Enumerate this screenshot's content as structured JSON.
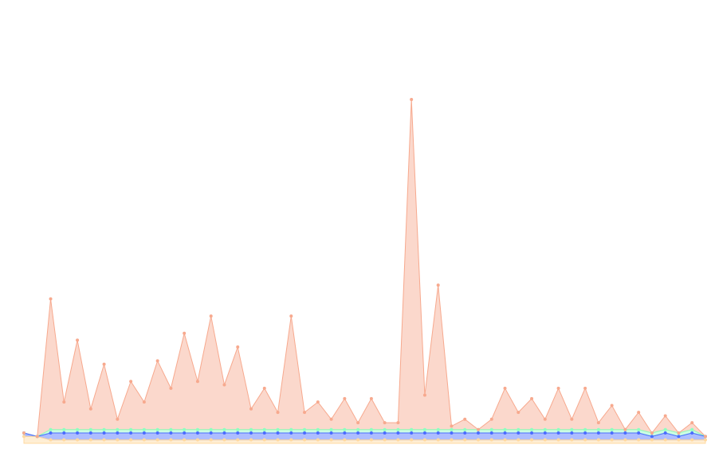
{
  "chart_data": {
    "type": "stacked-area",
    "categories": [
      null,
      null,
      null,
      null,
      null,
      null,
      null,
      null,
      null,
      null,
      null,
      null,
      null,
      null,
      null,
      null,
      null,
      null,
      null,
      null,
      null,
      null,
      null,
      null,
      null,
      null,
      null,
      null,
      null,
      null,
      null,
      null,
      null,
      null,
      null,
      null,
      null,
      null,
      null,
      null,
      null,
      null,
      null,
      null,
      null,
      null,
      null,
      null,
      null,
      null,
      null,
      null
    ],
    "ylim": [
      0,
      100
    ],
    "series": [
      {
        "color": "#ffd9a0",
        "values": [
          2,
          2,
          1,
          1,
          1,
          1,
          1,
          1,
          1,
          1,
          1,
          1,
          1,
          1,
          1,
          1,
          1,
          1,
          1,
          1,
          1,
          1,
          1,
          1,
          1,
          1,
          1,
          1,
          1,
          1,
          1,
          1,
          1,
          1,
          1,
          1,
          1,
          1,
          1,
          1,
          1,
          1,
          1,
          1,
          1,
          1,
          1,
          1,
          1,
          1,
          1,
          1
        ]
      },
      {
        "color": "#4a6cff",
        "values": [
          1,
          0,
          2,
          2,
          2,
          2,
          2,
          2,
          2,
          2,
          2,
          2,
          2,
          2,
          2,
          2,
          2,
          2,
          2,
          2,
          2,
          2,
          2,
          2,
          2,
          2,
          2,
          2,
          2,
          2,
          2,
          2,
          2,
          2,
          2,
          2,
          2,
          2,
          2,
          2,
          2,
          2,
          2,
          2,
          2,
          2,
          2,
          1,
          2,
          1,
          2,
          1
        ]
      },
      {
        "color": "#8fffc0",
        "values": [
          0,
          0,
          1,
          1,
          1,
          1,
          1,
          1,
          1,
          1,
          1,
          1,
          1,
          1,
          1,
          1,
          1,
          1,
          1,
          1,
          1,
          1,
          1,
          1,
          1,
          1,
          1,
          1,
          1,
          1,
          1,
          1,
          1,
          1,
          1,
          1,
          1,
          1,
          1,
          1,
          1,
          1,
          1,
          1,
          1,
          1,
          1,
          1,
          1,
          1,
          1,
          0
        ]
      },
      {
        "color": "#f7a98e",
        "values": [
          0,
          0,
          38,
          8,
          26,
          6,
          19,
          3,
          14,
          8,
          20,
          12,
          28,
          14,
          33,
          13,
          24,
          6,
          12,
          5,
          33,
          5,
          8,
          3,
          9,
          2,
          9,
          2,
          2,
          96,
          10,
          42,
          1,
          3,
          0,
          3,
          12,
          5,
          9,
          3,
          12,
          3,
          12,
          2,
          7,
          0,
          5,
          0,
          4,
          0,
          2,
          0
        ]
      }
    ]
  }
}
